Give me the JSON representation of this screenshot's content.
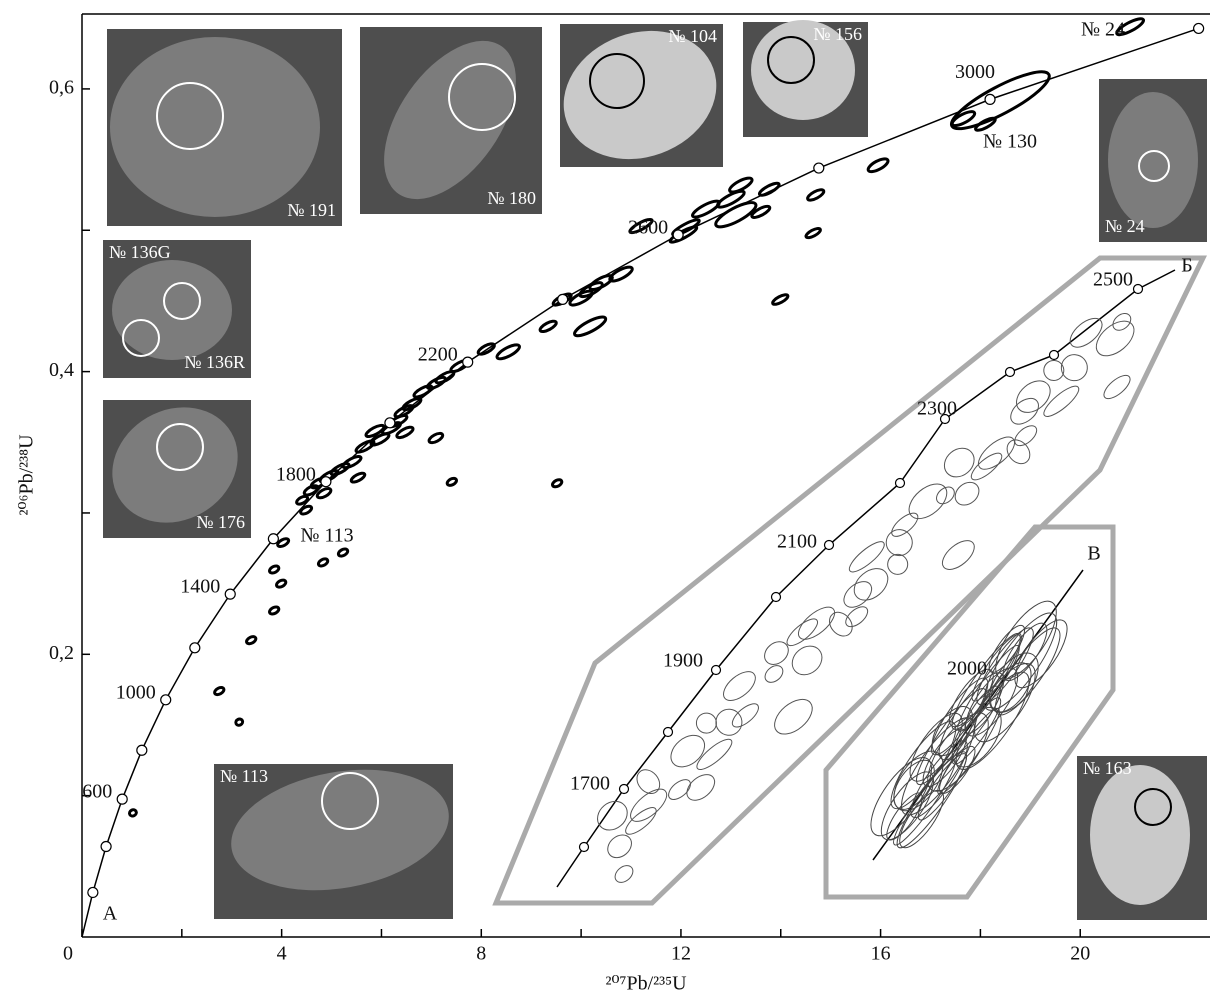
{
  "chart_data": {
    "type": "concordia",
    "x_label": "²⁰⁷Pb/²³⁵U",
    "y_label": "²⁰⁶Pb/²³⁸U",
    "xlim": [
      0,
      22.6
    ],
    "ylim": [
      0,
      0.653
    ],
    "xticks": [
      0,
      4,
      8,
      12,
      16,
      20
    ],
    "xticks_minor": [
      2,
      6,
      10,
      14,
      18
    ],
    "yticks": [
      {
        "value": 0.2,
        "label": "0,2"
      },
      {
        "value": 0.4,
        "label": "0,4"
      },
      {
        "value": 0.6,
        "label": "0,6"
      }
    ],
    "yticks_minor": [
      0.1,
      0.3,
      0.5
    ],
    "origin_label": "0",
    "concordia": {
      "x": [
        0.2177,
        0.4828,
        0.8056,
        1.1987,
        1.6774,
        2.2604,
        2.97,
        3.8343,
        4.8867,
        6.1689,
        7.7279,
        9.6298,
        11.944,
        14.762,
        18.193,
        22.372
      ],
      "y": [
        0.03151,
        0.06402,
        0.09754,
        0.13213,
        0.16781,
        0.2046,
        0.24257,
        0.28173,
        0.32213,
        0.36377,
        0.40672,
        0.45109,
        0.49672,
        0.54401,
        0.5926,
        0.64278
      ],
      "labels": [
        null,
        null,
        "600",
        null,
        "1000",
        null,
        "1400",
        null,
        "1800",
        null,
        "2200",
        null,
        "2600",
        null,
        "3000",
        null
      ]
    },
    "analyses": {
      "color": "#000000",
      "x": [
        21.0,
        18.4,
        17.66,
        18.1,
        15.95,
        14.7,
        14.65,
        13.99,
        13.2,
        13.77,
        13.0,
        12.5,
        13.1,
        13.6,
        12.1,
        11.2,
        12.05,
        10.8,
        10.4,
        10.2,
        10.0,
        9.62,
        10.18,
        9.34,
        8.54,
        8.1,
        7.57,
        7.27,
        7.1,
        6.83,
        6.61,
        6.45,
        6.33,
        6.2,
        5.87,
        6.47,
        5.97,
        5.67,
        7.09,
        5.41,
        5.17,
        4.95,
        5.53,
        7.41,
        4.59,
        4.73,
        4.41,
        4.49,
        4.85,
        4.03,
        5.23,
        4.83,
        3.85,
        3.99,
        3.85,
        3.39,
        2.75,
        3.15,
        1.02,
        9.52
      ],
      "y": [
        0.644,
        0.592,
        0.579,
        0.575,
        0.546,
        0.525,
        0.498,
        0.451,
        0.532,
        0.529,
        0.522,
        0.515,
        0.511,
        0.513,
        0.502,
        0.503,
        0.497,
        0.469,
        0.463,
        0.458,
        0.452,
        0.451,
        0.432,
        0.432,
        0.414,
        0.416,
        0.404,
        0.396,
        0.392,
        0.386,
        0.377,
        0.372,
        0.365,
        0.36,
        0.358,
        0.357,
        0.352,
        0.347,
        0.353,
        0.336,
        0.331,
        0.326,
        0.325,
        0.322,
        0.316,
        0.321,
        0.309,
        0.302,
        0.314,
        0.279,
        0.272,
        0.265,
        0.26,
        0.25,
        0.231,
        0.21,
        0.174,
        0.152,
        0.0878,
        0.321
      ],
      "x_err": [
        0.3,
        1.1,
        0.25,
        0.22,
        0.22,
        0.18,
        0.16,
        0.17,
        0.25,
        0.22,
        0.3,
        0.3,
        0.45,
        0.2,
        0.3,
        0.25,
        0.3,
        0.25,
        0.25,
        0.25,
        0.25,
        0.2,
        0.35,
        0.18,
        0.25,
        0.18,
        0.2,
        0.2,
        0.2,
        0.2,
        0.2,
        0.2,
        0.2,
        0.2,
        0.2,
        0.18,
        0.2,
        0.2,
        0.15,
        0.2,
        0.2,
        0.2,
        0.15,
        0.1,
        0.15,
        0.15,
        0.12,
        0.12,
        0.15,
        0.12,
        0.1,
        0.1,
        0.1,
        0.1,
        0.1,
        0.1,
        0.1,
        0.07,
        0.07,
        0.1
      ],
      "y_err": [
        0.005,
        0.016,
        0.005,
        0.004,
        0.005,
        0.004,
        0.003,
        0.003,
        0.005,
        0.004,
        0.005,
        0.005,
        0.008,
        0.004,
        0.004,
        0.004,
        0.004,
        0.005,
        0.005,
        0.005,
        0.005,
        0.004,
        0.006,
        0.004,
        0.005,
        0.004,
        0.004,
        0.004,
        0.004,
        0.004,
        0.004,
        0.004,
        0.004,
        0.004,
        0.004,
        0.004,
        0.004,
        0.004,
        0.004,
        0.004,
        0.004,
        0.004,
        0.003,
        0.002,
        0.004,
        0.004,
        0.003,
        0.003,
        0.004,
        0.003,
        0.002,
        0.002,
        0.003,
        0.003,
        0.003,
        0.002,
        0.003,
        0.002,
        0.002,
        0.002
      ]
    },
    "annotations": [
      "№ 24",
      "№ 130",
      "№ 113",
      "А"
    ],
    "images": [
      "№ 191",
      "№ 180",
      "№ 104",
      "№ 156",
      "№ 24",
      "№ 136G",
      "№ 136R",
      "№ 176",
      "№ 113",
      "№ 163"
    ],
    "inset_b": {
      "letter": "Б",
      "labels": [
        "1700",
        "1900",
        "2100",
        "2300",
        "2500"
      ]
    },
    "inset_v": {
      "letter": "В",
      "label": "2000"
    }
  }
}
